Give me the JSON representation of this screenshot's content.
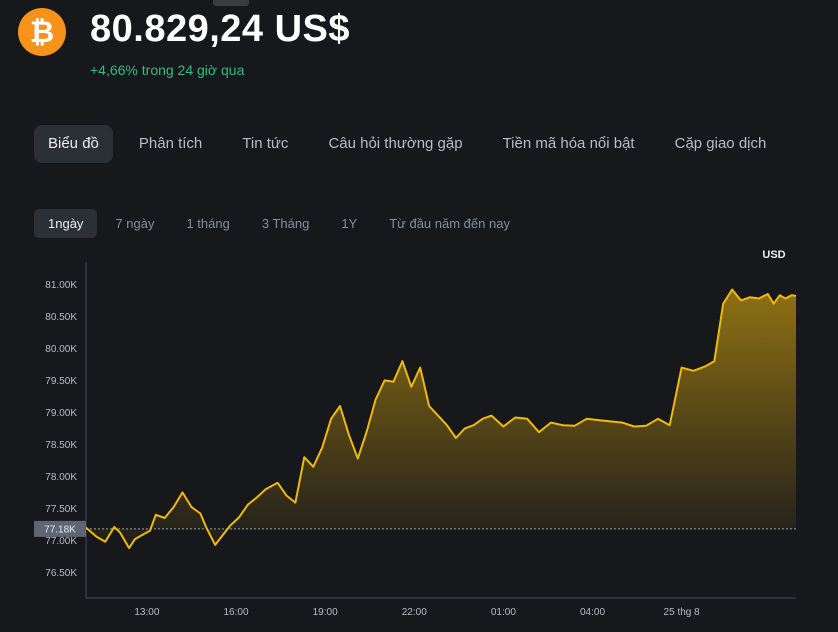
{
  "coin": {
    "icon": "bitcoin-icon",
    "icon_glyph": "₿",
    "price": "80.829,24 US$",
    "change": "+4,66% trong 24 giờ qua",
    "change_color": "#2ebd85",
    "accent": "#f7931a"
  },
  "tabs": [
    {
      "label": "Biểu đồ",
      "active": true
    },
    {
      "label": "Phân tích",
      "active": false
    },
    {
      "label": "Tin tức",
      "active": false
    },
    {
      "label": "Câu hỏi thường gặp",
      "active": false
    },
    {
      "label": "Tiền mã hóa nổi bật",
      "active": false
    },
    {
      "label": "Cặp giao dịch",
      "active": false
    }
  ],
  "ranges": [
    {
      "label": "1ngày",
      "active": true
    },
    {
      "label": "7 ngày",
      "active": false
    },
    {
      "label": "1 tháng",
      "active": false
    },
    {
      "label": "3 Tháng",
      "active": false
    },
    {
      "label": "1Y",
      "active": false
    },
    {
      "label": "Từ đầu năm đến nay",
      "active": false
    }
  ],
  "chart_data": {
    "type": "area",
    "unit_label": "USD",
    "line_color": "#f0b90b",
    "ylim": [
      76100,
      81350
    ],
    "y_ticks": [
      {
        "value": 81000,
        "label": "81.00K"
      },
      {
        "value": 80500,
        "label": "80.50K"
      },
      {
        "value": 80000,
        "label": "80.00K"
      },
      {
        "value": 79500,
        "label": "79.50K"
      },
      {
        "value": 79000,
        "label": "79.00K"
      },
      {
        "value": 78500,
        "label": "78.50K"
      },
      {
        "value": 78000,
        "label": "78.00K"
      },
      {
        "value": 77500,
        "label": "77.50K"
      },
      {
        "value": 77000,
        "label": "77.00K"
      },
      {
        "value": 76500,
        "label": "76.50K"
      }
    ],
    "x_range_hours": [
      10.95,
      34.85
    ],
    "x_ticks": [
      {
        "value": 13,
        "label": "13:00"
      },
      {
        "value": 16,
        "label": "16:00"
      },
      {
        "value": 19,
        "label": "19:00"
      },
      {
        "value": 22,
        "label": "22:00"
      },
      {
        "value": 25,
        "label": "01:00"
      },
      {
        "value": 28,
        "label": "04:00"
      },
      {
        "value": 31,
        "label": "25 thg 8"
      }
    ],
    "baseline": {
      "value": 77180,
      "label": "77.18K"
    },
    "x": [
      10.95,
      11.3,
      11.6,
      11.9,
      12.1,
      12.4,
      12.6,
      12.9,
      13.1,
      13.3,
      13.6,
      13.9,
      14.2,
      14.5,
      14.8,
      15.0,
      15.3,
      15.6,
      15.8,
      16.1,
      16.4,
      16.7,
      17.0,
      17.4,
      17.7,
      18.0,
      18.3,
      18.6,
      18.9,
      19.2,
      19.5,
      19.8,
      20.1,
      20.4,
      20.7,
      21.0,
      21.3,
      21.6,
      21.9,
      22.2,
      22.5,
      22.8,
      23.1,
      23.4,
      23.7,
      24.0,
      24.3,
      24.6,
      25.0,
      25.4,
      25.8,
      26.2,
      26.6,
      27.0,
      27.4,
      27.8,
      28.2,
      28.6,
      29.0,
      29.4,
      29.8,
      30.2,
      30.6,
      31.0,
      31.4,
      31.8,
      32.1,
      32.4,
      32.7,
      33.0,
      33.3,
      33.6,
      33.9,
      34.1,
      34.3,
      34.5,
      34.7,
      34.85
    ],
    "y": [
      77200,
      77060,
      76980,
      77210,
      77120,
      76880,
      77020,
      77100,
      77150,
      77400,
      77350,
      77520,
      77750,
      77520,
      77420,
      77200,
      76930,
      77110,
      77230,
      77360,
      77560,
      77670,
      77800,
      77900,
      77700,
      77590,
      78300,
      78150,
      78450,
      78900,
      79100,
      78650,
      78280,
      78700,
      79200,
      79500,
      79480,
      79800,
      79400,
      79700,
      79100,
      78950,
      78800,
      78600,
      78750,
      78800,
      78900,
      78950,
      78780,
      78920,
      78900,
      78690,
      78840,
      78800,
      78790,
      78900,
      78880,
      78860,
      78840,
      78780,
      78790,
      78900,
      78800,
      79700,
      79650,
      79720,
      79800,
      80700,
      80920,
      80750,
      80800,
      80780,
      80850,
      80700,
      80830,
      80780,
      80830,
      80820
    ]
  }
}
